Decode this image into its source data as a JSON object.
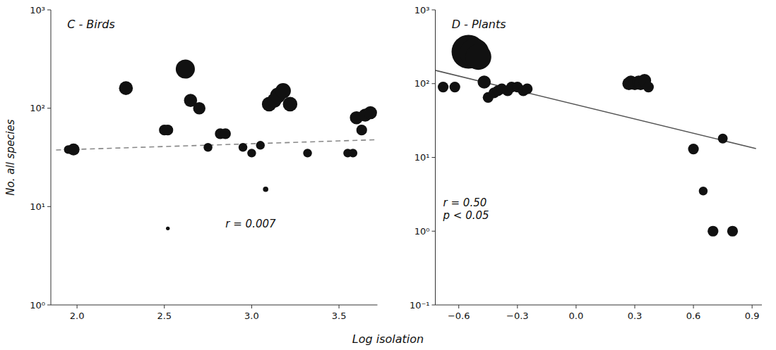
{
  "chart_data": [
    {
      "type": "scatter",
      "title": "C - Birds",
      "ylabel": "No. all species",
      "xlabel": "Log isolation",
      "log": "y",
      "xlim": [
        1.85,
        3.72
      ],
      "ylim": [
        1,
        1000
      ],
      "xticks": [
        {
          "value": 2.0,
          "label": "2.0"
        },
        {
          "value": 2.5,
          "label": "2.5"
        },
        {
          "value": 3.0,
          "label": "3.0"
        },
        {
          "value": 3.5,
          "label": "3.5"
        }
      ],
      "yticks": [
        {
          "value": 1,
          "label": "10⁰"
        },
        {
          "value": 10,
          "label": "10¹"
        },
        {
          "value": 100,
          "label": "10²"
        },
        {
          "value": 1000,
          "label": "10³"
        }
      ],
      "color": "#111111",
      "x": [
        1.95,
        1.98,
        2.28,
        2.5,
        2.52,
        2.52,
        2.62,
        2.65,
        2.7,
        2.75,
        2.82,
        2.85,
        2.95,
        3.0,
        3.05,
        3.08,
        3.1,
        3.13,
        3.15,
        3.18,
        3.22,
        3.32,
        3.55,
        3.58,
        3.6,
        3.63,
        3.65,
        3.68
      ],
      "values": [
        38,
        38,
        160,
        60,
        60,
        6,
        250,
        120,
        100,
        40,
        55,
        55,
        40,
        35,
        42,
        15,
        110,
        120,
        135,
        150,
        110,
        35,
        35,
        35,
        80,
        60,
        85,
        90
      ],
      "sizes": [
        80,
        150,
        200,
        120,
        120,
        15,
        380,
        180,
        160,
        80,
        120,
        120,
        80,
        80,
        80,
        30,
        220,
        220,
        250,
        250,
        220,
        80,
        80,
        80,
        180,
        120,
        180,
        180
      ],
      "line": {
        "x": [
          1.88,
          3.72
        ],
        "values": [
          37.5838,
          47.863
        ],
        "line_style": "dashed",
        "color": "#888888"
      },
      "annotations": [
        {
          "text": "r = 0.007",
          "x": 2.85,
          "y": 6.60693
        }
      ]
    },
    {
      "type": "scatter",
      "title": "D - Plants",
      "log": "y",
      "xlim": [
        -0.72,
        0.95
      ],
      "ylim": [
        0.1,
        1000
      ],
      "xticks": [
        {
          "value": -0.6,
          "label": "−0.6"
        },
        {
          "value": -0.3,
          "label": "−0.3"
        },
        {
          "value": 0.0,
          "label": "0.0"
        },
        {
          "value": 0.3,
          "label": "0.3"
        },
        {
          "value": 0.6,
          "label": "0.6"
        },
        {
          "value": 0.9,
          "label": "0.9"
        }
      ],
      "yticks": [
        {
          "value": 0.1,
          "label": "10⁻¹"
        },
        {
          "value": 1,
          "label": "10⁰"
        },
        {
          "value": 10,
          "label": "10¹"
        },
        {
          "value": 100,
          "label": "10²"
        },
        {
          "value": 1000,
          "label": "10³"
        }
      ],
      "color": "#111111",
      "x": [
        -0.68,
        -0.62,
        -0.55,
        -0.52,
        -0.5,
        -0.47,
        -0.45,
        -0.42,
        -0.4,
        -0.38,
        -0.35,
        -0.33,
        -0.3,
        -0.27,
        -0.25,
        0.27,
        0.28,
        0.3,
        0.32,
        0.33,
        0.35,
        0.37,
        0.6,
        0.65,
        0.7,
        0.75,
        0.8
      ],
      "values": [
        90,
        90,
        270,
        260,
        230,
        105,
        65,
        75,
        80,
        85,
        80,
        90,
        90,
        80,
        85,
        100,
        105,
        100,
        105,
        100,
        110,
        90,
        13,
        3.5,
        1,
        18,
        1
      ],
      "sizes": [
        120,
        120,
        1200,
        900,
        700,
        180,
        120,
        120,
        120,
        120,
        120,
        120,
        120,
        120,
        120,
        180,
        180,
        180,
        180,
        180,
        180,
        120,
        120,
        80,
        120,
        100,
        120
      ],
      "line": {
        "x": [
          -0.72,
          0.92
        ],
        "values": [
          151.356,
          13.1826
        ],
        "line_style": "solid",
        "color": "#555555"
      },
      "annotations": [
        {
          "text": "r = 0.50\np < 0.05",
          "x": -0.68,
          "y": 1.99526
        }
      ]
    }
  ]
}
